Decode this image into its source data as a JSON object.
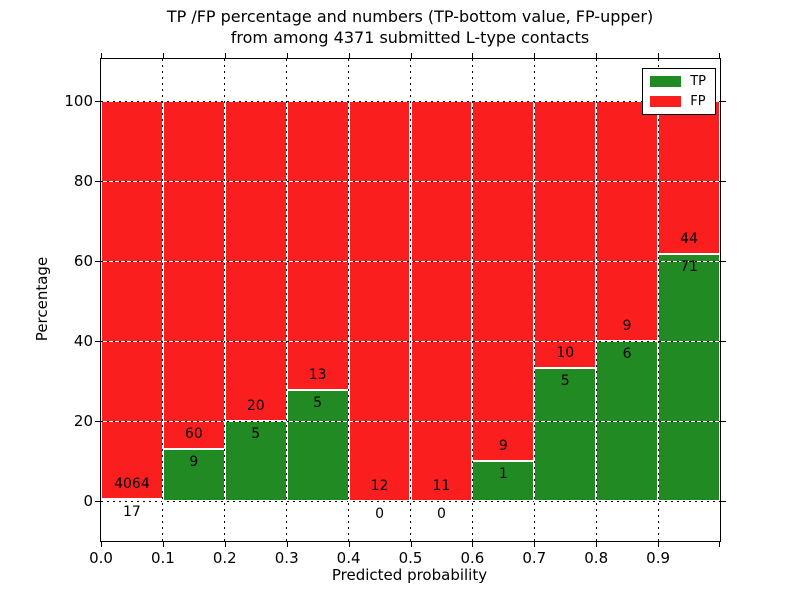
{
  "title": {
    "line1": "TP /FP percentage and numbers (TP-bottom value, FP-upper)",
    "line2": "from among 4371 submitted L-type contacts"
  },
  "chart_data": {
    "type": "bar",
    "stacked": true,
    "units": "percent",
    "title": "TP /FP percentage and numbers (TP-bottom value, FP-upper) from among 4371 submitted L-type contacts",
    "xlabel": "Predicted probability",
    "ylabel": "Percentage",
    "xlim": [
      0.0,
      1.0
    ],
    "ylim": [
      -10,
      110.5
    ],
    "xticks": [
      "0.0",
      "0.1",
      "0.2",
      "0.3",
      "0.4",
      "0.5",
      "0.6",
      "0.7",
      "0.8",
      "0.9"
    ],
    "yticks": [
      0,
      20,
      40,
      60,
      80,
      100
    ],
    "grid": true,
    "total_contacts": 4371,
    "bin_width": 0.1,
    "bins": [
      {
        "x_start": 0.0,
        "tp": 17,
        "fp": 4064,
        "tp_pct": 0.42
      },
      {
        "x_start": 0.1,
        "tp": 9,
        "fp": 60,
        "tp_pct": 13.04
      },
      {
        "x_start": 0.2,
        "tp": 5,
        "fp": 20,
        "tp_pct": 20.0
      },
      {
        "x_start": 0.3,
        "tp": 5,
        "fp": 13,
        "tp_pct": 27.78
      },
      {
        "x_start": 0.4,
        "tp": 0,
        "fp": 12,
        "tp_pct": 0.0
      },
      {
        "x_start": 0.5,
        "tp": 0,
        "fp": 11,
        "tp_pct": 0.0
      },
      {
        "x_start": 0.6,
        "tp": 1,
        "fp": 9,
        "tp_pct": 10.0
      },
      {
        "x_start": 0.7,
        "tp": 5,
        "fp": 10,
        "tp_pct": 33.33
      },
      {
        "x_start": 0.8,
        "tp": 6,
        "fp": 9,
        "tp_pct": 40.0
      },
      {
        "x_start": 0.9,
        "tp": 71,
        "fp": 44,
        "tp_pct": 61.74
      }
    ],
    "legend": {
      "position": "upper right",
      "entries": [
        {
          "label": "TP",
          "color": "#228a22"
        },
        {
          "label": "FP",
          "color": "#fb1e1e"
        }
      ]
    },
    "colors": {
      "tp": "#228a22",
      "fp": "#fb1e1e"
    }
  }
}
